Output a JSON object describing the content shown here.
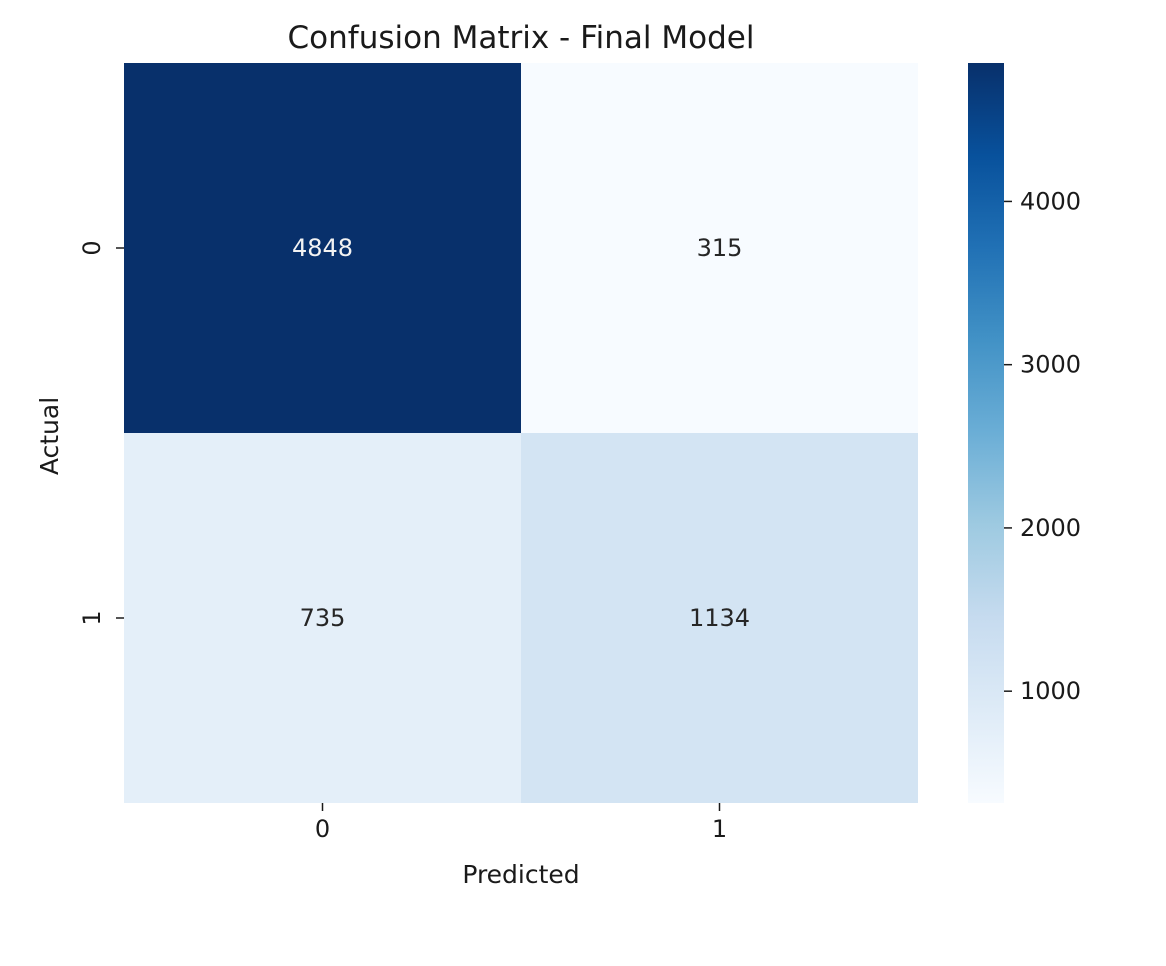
{
  "chart_data": {
    "type": "heatmap",
    "title": "Confusion Matrix - Final Model",
    "xlabel": "Predicted",
    "ylabel": "Actual",
    "x_categories": [
      "0",
      "1"
    ],
    "y_categories": [
      "0",
      "1"
    ],
    "values": [
      [
        4848,
        315
      ],
      [
        735,
        1134
      ]
    ],
    "annotated": true,
    "colormap": "Blues",
    "color_stops": [
      "#f7fbff",
      "#deebf7",
      "#c6dbef",
      "#9ecae1",
      "#6baed6",
      "#4292c6",
      "#2171b5",
      "#08519c",
      "#08306b"
    ],
    "colorbar": {
      "ticks": [
        1000,
        2000,
        3000,
        4000
      ],
      "tick_labels": [
        "1000",
        "2000",
        "3000",
        "4000"
      ],
      "range": [
        315,
        4848
      ]
    },
    "grid": false,
    "legend": "colorbar-right"
  }
}
